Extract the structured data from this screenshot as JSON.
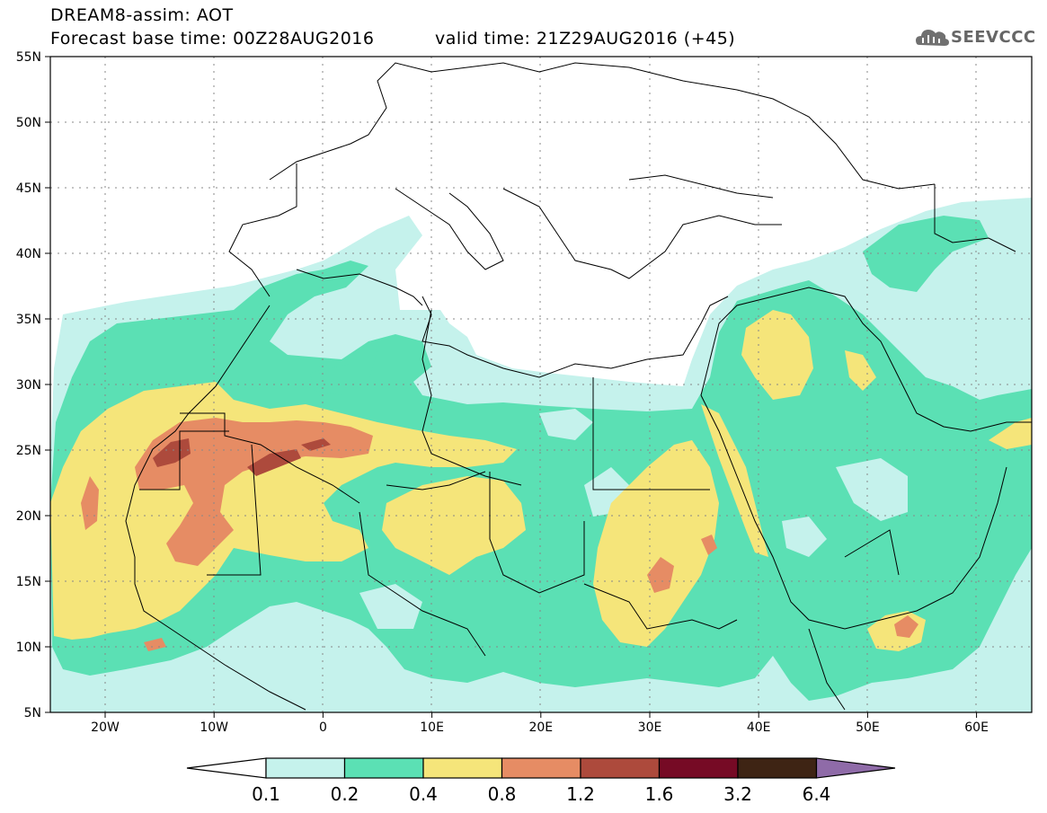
{
  "header": {
    "model_line": "DREAM8-assim: AOT",
    "base_time": "Forecast base time: 00Z28AUG2016",
    "valid_time": "valid time: 21Z29AUG2016 (+45)",
    "logo_label": "SEEVCCC"
  },
  "map": {
    "lat_labels": [
      "55N",
      "50N",
      "45N",
      "40N",
      "35N",
      "30N",
      "25N",
      "20N",
      "15N",
      "10N",
      "5N"
    ],
    "lon_labels": [
      "20W",
      "10W",
      "0",
      "10E",
      "20E",
      "30E",
      "40E",
      "50E",
      "60E"
    ],
    "colors": {
      "band_0_1_0_2": "#c5f2ec",
      "band_0_2_0_4": "#5be0b4",
      "band_0_4_0_8": "#f5e57a",
      "band_0_8_1_2": "#e68c64",
      "band_1_2_1_6": "#ad4a3c",
      "band_1_6_3_2": "#760a25",
      "band_3_2_6_4": "#3e2414",
      "band_above_6_4": "#8f6ba8",
      "borders": "#000000"
    }
  },
  "colorbar": {
    "ticks": [
      "0.1",
      "0.2",
      "0.4",
      "0.8",
      "1.2",
      "1.6",
      "3.2",
      "6.4"
    ],
    "colors": [
      "#c5f2ec",
      "#5be0b4",
      "#f5e57a",
      "#e68c64",
      "#ad4a3c",
      "#760a25",
      "#3e2414"
    ],
    "low_color": "#ffffff",
    "high_color": "#8f6ba8"
  }
}
